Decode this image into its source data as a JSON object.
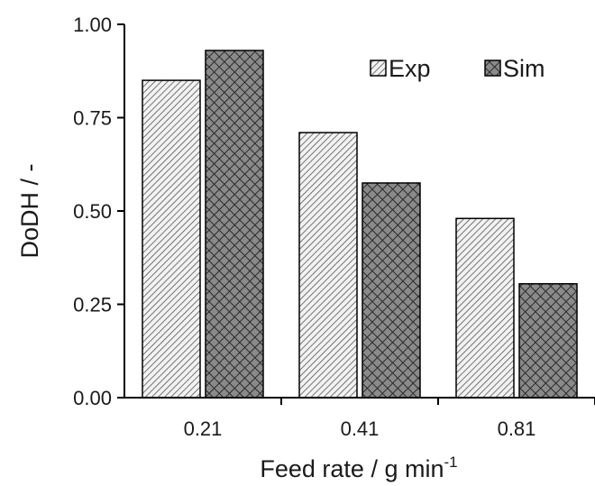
{
  "chart_data": {
    "type": "bar",
    "categories": [
      "0.21",
      "0.41",
      "0.81"
    ],
    "series": [
      {
        "name": "Exp",
        "values": [
          0.85,
          0.71,
          0.48
        ],
        "pattern": "diagonal-hatch",
        "color": "#ffffff"
      },
      {
        "name": "Sim",
        "values": [
          0.93,
          0.575,
          0.305
        ],
        "pattern": "crosshatch",
        "color": "#7a7a7a"
      }
    ],
    "xlabel": "Feed rate / g min",
    "xlabel_superscript": "-1",
    "ylabel": "DoDH / -",
    "ylim": [
      0,
      1
    ],
    "yticks": [
      "0.00",
      "0.25",
      "0.50",
      "0.75",
      "1.00"
    ],
    "legend_position": "top-right",
    "grid": false
  }
}
